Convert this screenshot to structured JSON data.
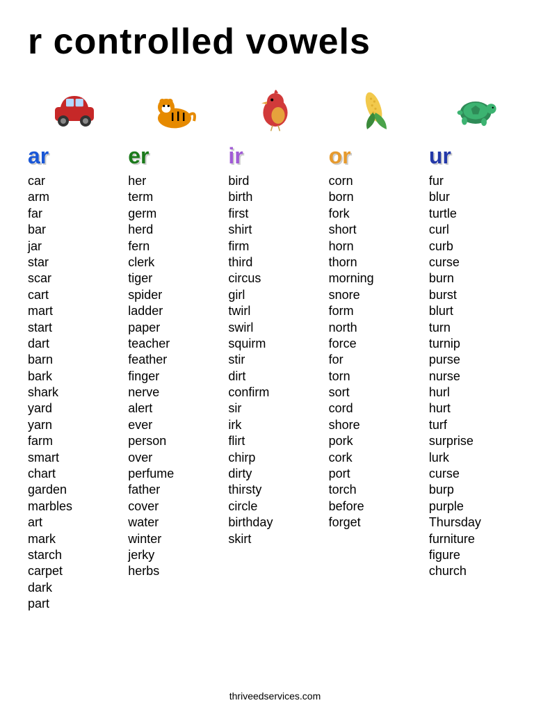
{
  "title": "r controlled vowels",
  "footer": "thriveedservices.com",
  "columns": [
    {
      "heading": "ar",
      "heading_color": "#1a57d6",
      "icon": "car",
      "icon_color": "#c62828",
      "words": [
        "car",
        "arm",
        "far",
        "bar",
        "jar",
        "star",
        "scar",
        "cart",
        "mart",
        "start",
        "dart",
        "barn",
        "bark",
        "shark",
        "yard",
        "yarn",
        "farm",
        "smart",
        "chart",
        "garden",
        "marbles",
        "art",
        "mark",
        "starch",
        "carpet",
        "dark",
        "part"
      ]
    },
    {
      "heading": "er",
      "heading_color": "#1b7a1b",
      "icon": "tiger",
      "icon_color": "#e68a00",
      "words": [
        "her",
        "term",
        "germ",
        "herd",
        "fern",
        "clerk",
        "tiger",
        "spider",
        "ladder",
        "paper",
        "teacher",
        "feather",
        "finger",
        "nerve",
        "alert",
        "ever",
        "person",
        "over",
        "perfume",
        "father",
        "cover",
        "water",
        "winter",
        "jerky",
        "herbs"
      ]
    },
    {
      "heading": "ir",
      "heading_color": "#a15bd6",
      "icon": "bird",
      "icon_color": "#d13a3a",
      "words": [
        "bird",
        "birth",
        "first",
        "shirt",
        "firm",
        "third",
        "circus",
        "girl",
        "twirl",
        "swirl",
        "squirm",
        "stir",
        "dirt",
        "confirm",
        "sir",
        "irk",
        "flirt",
        "chirp",
        "dirty",
        "thirsty",
        "circle",
        "birthday",
        "skirt"
      ]
    },
    {
      "heading": "or",
      "heading_color": "#e69a2e",
      "icon": "corn",
      "icon_color": "#f2c94c",
      "words": [
        "corn",
        "born",
        "fork",
        "short",
        "horn",
        "thorn",
        "morning",
        "snore",
        "form",
        "north",
        "force",
        "for",
        "torn",
        "sort",
        "cord",
        "shore",
        "pork",
        "cork",
        "port",
        "torch",
        "before",
        "forget"
      ]
    },
    {
      "heading": "ur",
      "heading_color": "#2338a8",
      "icon": "turtle",
      "icon_color": "#2e8b57",
      "words": [
        "fur",
        "blur",
        "turtle",
        "curl",
        "curb",
        "curse",
        "burn",
        "burst",
        "blurt",
        "turn",
        "turnip",
        "purse",
        "nurse",
        "hurl",
        "hurt",
        "turf",
        "surprise",
        "lurk",
        "curse",
        "burp",
        "purple",
        "Thursday",
        "furniture",
        "figure",
        "church"
      ]
    }
  ]
}
